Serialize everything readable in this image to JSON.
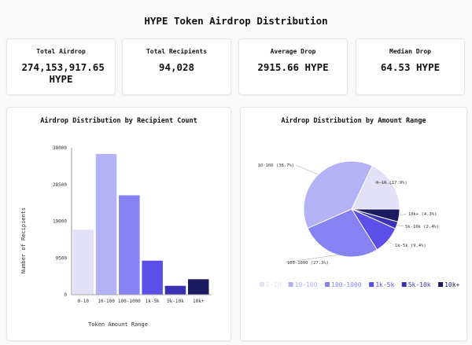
{
  "title": "HYPE Token Airdrop Distribution",
  "stats": [
    {
      "label": "Total Airdrop",
      "value": "274,153,917.65 HYPE"
    },
    {
      "label": "Total Recipients",
      "value": "94,028"
    },
    {
      "label": "Average Drop",
      "value": "2915.66 HYPE"
    },
    {
      "label": "Median Drop",
      "value": "64.53 HYPE"
    }
  ],
  "colors": [
    "#e2e1f8",
    "#b4b1f6",
    "#8582f2",
    "#5b4fe9",
    "#3a31b3",
    "#1c1b62"
  ],
  "chart_data": [
    {
      "type": "bar",
      "title": "Airdrop Distribution by Recipient Count",
      "xlabel": "Token Amount Range",
      "ylabel": "Number of Recipients",
      "categories": [
        "0-10",
        "10-100",
        "100-1000",
        "1k-5k",
        "5k-10k",
        "10k+"
      ],
      "values": [
        16800,
        36400,
        25700,
        8800,
        2300,
        4000
      ],
      "ylim": [
        0,
        38000
      ],
      "yticks": [
        "0",
        "9500",
        "19000",
        "28500",
        "38000"
      ],
      "grid": false
    },
    {
      "type": "pie",
      "title": "Airdrop Distribution by Amount Range",
      "categories": [
        "0-10",
        "10-100",
        "100-1000",
        "1k-5k",
        "5k-10k",
        "10k+"
      ],
      "values": [
        17.9,
        38.7,
        27.3,
        9.4,
        2.4,
        4.3
      ],
      "labels": [
        "0-10 (17.9%)",
        "10-100 (38.7%)",
        "100-1000 (27.3%)",
        "1k-5k (9.4%)",
        "5k-10k (2.4%)",
        "10k+ (4.3%)"
      ],
      "legend": "bottom"
    }
  ]
}
